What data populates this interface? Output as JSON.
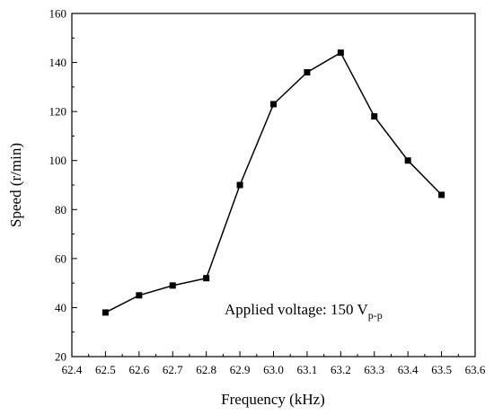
{
  "chart_data": {
    "type": "line",
    "title": "",
    "xlabel": "Frequency (kHz)",
    "ylabel": "Speed (r/min)",
    "xlim": [
      62.4,
      63.6
    ],
    "ylim": [
      20,
      160
    ],
    "xticks": [
      "62.4",
      "62.5",
      "62.6",
      "62.7",
      "62.8",
      "62.9",
      "63.0",
      "63.1",
      "63.2",
      "63.3",
      "63.4",
      "63.5",
      "63.6"
    ],
    "yticks": [
      "20",
      "40",
      "60",
      "80",
      "100",
      "120",
      "140",
      "160"
    ],
    "grid": false,
    "legend": "none",
    "marker": "square",
    "line_color": "#000000",
    "x": [
      62.5,
      62.6,
      62.7,
      62.8,
      62.9,
      63.0,
      63.1,
      63.2,
      63.3,
      63.4,
      63.5
    ],
    "series": [
      {
        "values": [
          38,
          45,
          49,
          52,
          90,
          123,
          136,
          144,
          118,
          100,
          86
        ]
      }
    ],
    "annotation": {
      "text": "Applied voltage: 150 V",
      "subscript": "p-p"
    }
  }
}
